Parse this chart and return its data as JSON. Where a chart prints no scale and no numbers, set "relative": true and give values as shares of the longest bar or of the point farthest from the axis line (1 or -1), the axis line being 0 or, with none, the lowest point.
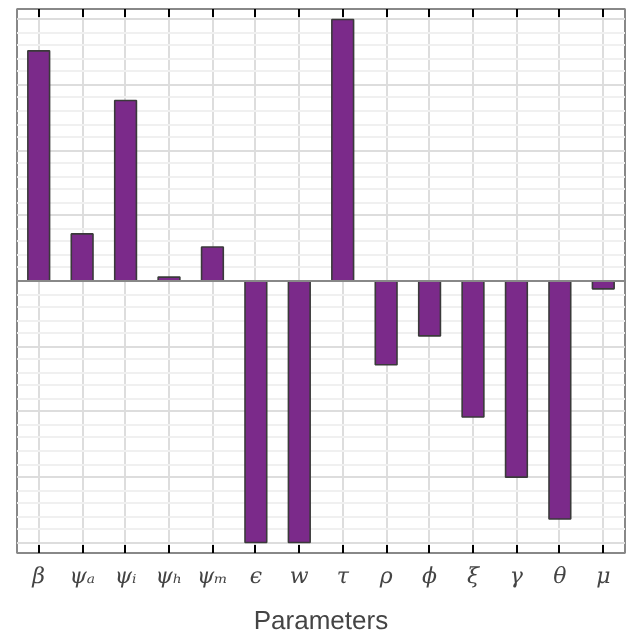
{
  "chart_data": {
    "type": "bar",
    "xlabel": "Parameters",
    "relative": true,
    "grid": true,
    "color": "#7b2a8a",
    "categories": [
      "β",
      "ψₐ",
      "ψᵢ",
      "ψₕ",
      "ψₘ",
      "ϵ",
      "w",
      "τ",
      "ρ",
      "ϕ",
      "ξ",
      "γ",
      "θ",
      "μ"
    ],
    "values": [
      0.88,
      0.18,
      0.69,
      0.015,
      0.13,
      -1,
      -1,
      1,
      -0.32,
      -0.21,
      -0.52,
      -0.75,
      -0.91,
      -0.03
    ]
  }
}
